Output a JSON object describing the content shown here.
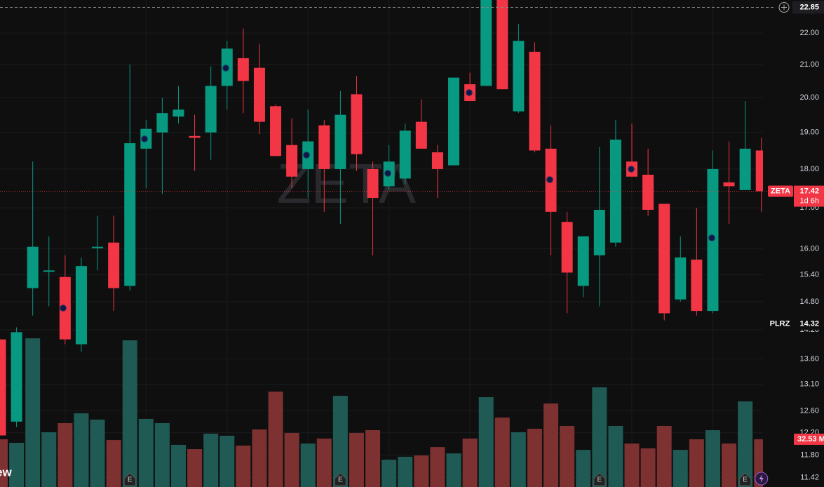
{
  "chart_data": {
    "type": "candlestick",
    "watermark": "ZETA",
    "log_scale": true,
    "grid": true,
    "up_color": "#089981",
    "down_color": "#f23645",
    "volume_up_color": "#1f5a55",
    "volume_down_color": "#7d3131",
    "ylim": [
      11.26,
      23.1
    ],
    "yticks": [
      {
        "value": 22,
        "label": "22.00"
      },
      {
        "value": 21,
        "label": "21.00"
      },
      {
        "value": 20,
        "label": "20.00"
      },
      {
        "value": 19,
        "label": "19.00"
      },
      {
        "value": 18,
        "label": "18.00"
      },
      {
        "value": 17,
        "label": "17.00"
      },
      {
        "value": 16,
        "label": "16.00"
      },
      {
        "value": 15.4,
        "label": "15.40"
      },
      {
        "value": 14.8,
        "label": "14.80"
      },
      {
        "value": 14.2,
        "label": "14.20"
      },
      {
        "value": 13.6,
        "label": "13.60"
      },
      {
        "value": 13.1,
        "label": "13.10"
      },
      {
        "value": 12.6,
        "label": "12.60"
      },
      {
        "value": 12.2,
        "label": "12.20"
      },
      {
        "value": 11.8,
        "label": "11.80"
      },
      {
        "value": 11.42,
        "label": "11.42"
      }
    ],
    "y2lim": [
      0,
      331.7
    ],
    "crosshair_price": 22.85,
    "markers": [
      {
        "symbol": "ZETA",
        "price": 17.42,
        "countdown": "1d 6h"
      },
      {
        "symbol": "PLRZ",
        "price": 14.32
      }
    ],
    "volume_label": "32.53 M",
    "earnings_label": "E",
    "corner_text": "ew",
    "open": [
      14.0,
      12.4,
      15.1,
      15.5,
      15.35,
      13.9,
      16.05,
      16.15,
      15.15,
      18.55,
      19.0,
      19.45,
      18.9,
      19.0,
      20.35,
      21.2,
      20.9,
      19.75,
      18.65,
      18.0,
      19.2,
      18.0,
      20.1,
      18.0,
      17.55,
      17.75,
      19.3,
      18.45,
      18.1,
      20.4,
      20.35,
      23.3,
      19.6,
      21.4,
      18.55,
      16.65,
      15.15,
      15.85,
      16.15,
      18.2,
      17.85,
      17.1,
      14.85,
      15.75,
      14.6,
      17.65,
      17.45,
      18.5
    ],
    "high": [
      14.0,
      14.25,
      18.2,
      16.3,
      15.85,
      15.8,
      16.8,
      16.8,
      21.0,
      19.35,
      20.0,
      20.35,
      19.5,
      20.95,
      21.75,
      22.15,
      21.65,
      19.8,
      19.4,
      19.65,
      19.35,
      20.2,
      20.65,
      18.2,
      18.65,
      19.25,
      19.95,
      18.65,
      20.6,
      20.75,
      23.5,
      23.5,
      22.3,
      21.7,
      19.2,
      16.9,
      16.3,
      18.6,
      19.35,
      19.25,
      18.55,
      17.1,
      16.3,
      17.0,
      18.5,
      18.75,
      19.9,
      18.85
    ],
    "low": [
      12.15,
      12.3,
      14.5,
      14.7,
      13.9,
      13.75,
      15.5,
      14.6,
      15.05,
      17.5,
      17.35,
      19.25,
      17.95,
      18.25,
      19.65,
      19.55,
      18.95,
      18.35,
      17.5,
      17.25,
      16.9,
      16.6,
      17.95,
      15.85,
      17.45,
      17.6,
      18.55,
      17.25,
      18.1,
      19.9,
      20.35,
      20.25,
      19.55,
      18.45,
      15.85,
      14.55,
      14.9,
      14.7,
      16.05,
      17.8,
      16.8,
      14.4,
      14.8,
      14.5,
      14.55,
      16.6,
      17.45,
      16.9
    ],
    "close": [
      12.15,
      14.15,
      16.05,
      15.5,
      14.0,
      15.6,
      16.05,
      15.1,
      18.7,
      19.1,
      19.55,
      19.65,
      18.85,
      20.35,
      21.5,
      20.5,
      19.3,
      18.35,
      17.8,
      18.75,
      18.0,
      19.5,
      18.4,
      17.25,
      18.2,
      19.05,
      18.55,
      18.0,
      20.6,
      19.9,
      23.3,
      20.25,
      21.75,
      18.5,
      16.9,
      15.45,
      16.3,
      16.95,
      18.8,
      17.8,
      16.95,
      14.55,
      15.8,
      14.6,
      18.0,
      17.55,
      18.55,
      17.42
    ],
    "volume": [
      32.5,
      30.1,
      101.3,
      37.3,
      43.5,
      50.2,
      45.9,
      32.0,
      99.9,
      46.4,
      43.5,
      28.7,
      25.8,
      36.3,
      34.9,
      28.2,
      39.2,
      65.0,
      36.8,
      29.6,
      33.0,
      62.1,
      36.8,
      38.7,
      18.6,
      20.6,
      21.5,
      27.2,
      22.9,
      33.0,
      61.2,
      47.3,
      37.3,
      39.7,
      56.9,
      41.6,
      25.3,
      67.9,
      41.6,
      29.6,
      26.3,
      41.6,
      25.3,
      32.5,
      38.7,
      29.6,
      58.3,
      32.53
    ]
  }
}
